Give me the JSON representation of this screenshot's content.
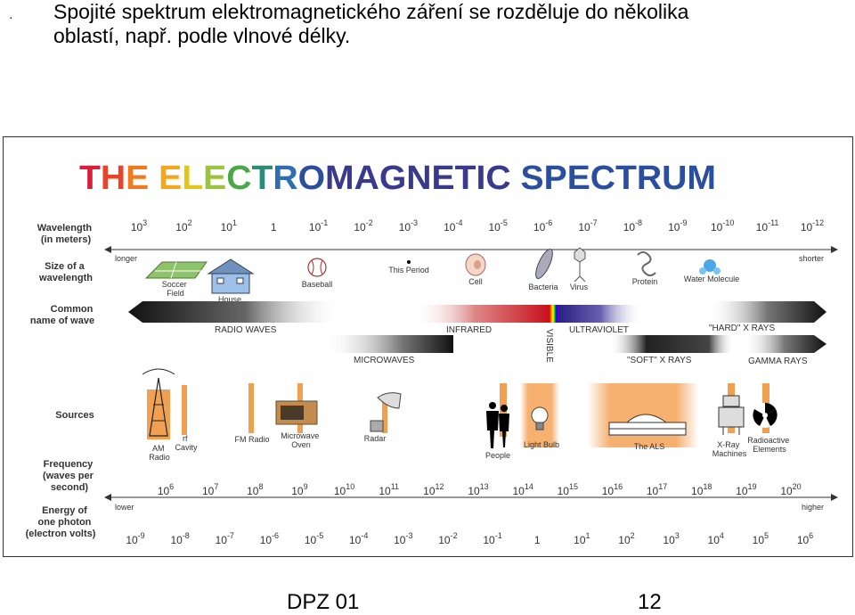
{
  "slide": {
    "bullet_symbol": "·",
    "bullet_text_line1": "Spojité spektrum elektromagnetického záření se rozděluje do několika",
    "bullet_text_line2": "oblastí, např. podle vlnové délky.",
    "footer_left": "DPZ 01",
    "footer_right": "12"
  },
  "figure": {
    "title_part1": "THE ELECTROMAGNETIC",
    "title_part2": "SPECTRUM",
    "row_labels": {
      "wavelength": [
        "Wavelength",
        "(in meters)"
      ],
      "size": [
        "Size of a",
        "wavelength"
      ],
      "common_name": [
        "Common",
        "name of wave"
      ],
      "sources": [
        "Sources"
      ],
      "frequency": [
        "Frequency",
        "(waves per",
        "second)"
      ],
      "energy": [
        "Energy of",
        "one photon",
        "(electron volts)"
      ]
    },
    "wavelength_ticks": [
      {
        "base": "10",
        "exp": "3"
      },
      {
        "base": "10",
        "exp": "2"
      },
      {
        "base": "10",
        "exp": "1"
      },
      {
        "base": "1",
        "exp": ""
      },
      {
        "base": "10",
        "exp": "-1"
      },
      {
        "base": "10",
        "exp": "-2"
      },
      {
        "base": "10",
        "exp": "-3"
      },
      {
        "base": "10",
        "exp": "-4"
      },
      {
        "base": "10",
        "exp": "-5"
      },
      {
        "base": "10",
        "exp": "-6"
      },
      {
        "base": "10",
        "exp": "-7"
      },
      {
        "base": "10",
        "exp": "-8"
      },
      {
        "base": "10",
        "exp": "-9"
      },
      {
        "base": "10",
        "exp": "-10"
      },
      {
        "base": "10",
        "exp": "-11"
      },
      {
        "base": "10",
        "exp": "-12"
      }
    ],
    "frequency_ticks": [
      {
        "base": "10",
        "exp": "6"
      },
      {
        "base": "10",
        "exp": "7"
      },
      {
        "base": "10",
        "exp": "8"
      },
      {
        "base": "10",
        "exp": "9"
      },
      {
        "base": "10",
        "exp": "10"
      },
      {
        "base": "10",
        "exp": "11"
      },
      {
        "base": "10",
        "exp": "12"
      },
      {
        "base": "10",
        "exp": "13"
      },
      {
        "base": "10",
        "exp": "14"
      },
      {
        "base": "10",
        "exp": "15"
      },
      {
        "base": "10",
        "exp": "16"
      },
      {
        "base": "10",
        "exp": "17"
      },
      {
        "base": "10",
        "exp": "18"
      },
      {
        "base": "10",
        "exp": "19"
      },
      {
        "base": "10",
        "exp": "20"
      }
    ],
    "energy_ticks": [
      {
        "base": "10",
        "exp": "-9"
      },
      {
        "base": "10",
        "exp": "-8"
      },
      {
        "base": "10",
        "exp": "-7"
      },
      {
        "base": "10",
        "exp": "-6"
      },
      {
        "base": "10",
        "exp": "-5"
      },
      {
        "base": "10",
        "exp": "-4"
      },
      {
        "base": "10",
        "exp": "-3"
      },
      {
        "base": "10",
        "exp": "-2"
      },
      {
        "base": "10",
        "exp": "-1"
      },
      {
        "base": "1",
        "exp": ""
      },
      {
        "base": "10",
        "exp": "1"
      },
      {
        "base": "10",
        "exp": "2"
      },
      {
        "base": "10",
        "exp": "3"
      },
      {
        "base": "10",
        "exp": "4"
      },
      {
        "base": "10",
        "exp": "5"
      },
      {
        "base": "10",
        "exp": "6"
      }
    ],
    "axis_ends": {
      "wavelength_left": "longer",
      "wavelength_right": "shorter",
      "energy_left": "lower",
      "energy_right": "higher"
    },
    "size_objects": {
      "soccer_field": [
        "Soccer",
        "Field"
      ],
      "house": "House",
      "baseball": "Baseball",
      "this_period": "This Period",
      "cell": "Cell",
      "bacteria": "Bacteria",
      "virus": "Virus",
      "protein": "Protein",
      "water_molecule": "Water Molecule"
    },
    "wave_names": {
      "radio": "RADIO WAVES",
      "microwaves": "MICROWAVES",
      "infrared": "INFRARED",
      "visible": "VISIBLE",
      "ultraviolet": "ULTRAVIOLET",
      "soft_xrays": "\"SOFT\" X RAYS",
      "hard_xrays": "\"HARD\" X RAYS",
      "gamma": "GAMMA RAYS"
    },
    "sources": {
      "am_radio": [
        "AM",
        "Radio"
      ],
      "rf_cavity": [
        "rf",
        "Cavity"
      ],
      "fm_radio": "FM Radio",
      "microwave_oven": [
        "Microwave",
        "Oven"
      ],
      "radar": "Radar",
      "people": "People",
      "light_bulb": "Light Bulb",
      "the_als": "The ALS",
      "xray_machines": [
        "X-Ray",
        "Machines"
      ],
      "radioactive": [
        "Radioactive",
        "Elements"
      ]
    },
    "colors": {
      "orange": "#f0a050",
      "dark_band": "#222222",
      "title_rainbow": [
        "#d6203a",
        "#e8442a",
        "#f07a1e",
        "#f3a81c",
        "#e6c419",
        "#9cc43a",
        "#4aa84a",
        "#2b8c7a",
        "#2f6fb0",
        "#2a4f9e",
        "#3a3a8c"
      ]
    },
    "icons": [
      "soccer-field-icon",
      "house-icon",
      "baseball-icon",
      "period-dot-icon",
      "cell-icon",
      "bacteria-icon",
      "virus-icon",
      "protein-icon",
      "water-molecule-icon",
      "radio-tower-icon",
      "microwave-oven-icon",
      "radar-dish-icon",
      "people-silhouette-icon",
      "light-bulb-icon",
      "als-building-icon",
      "xray-robot-icon",
      "radioactive-symbol-icon"
    ]
  }
}
